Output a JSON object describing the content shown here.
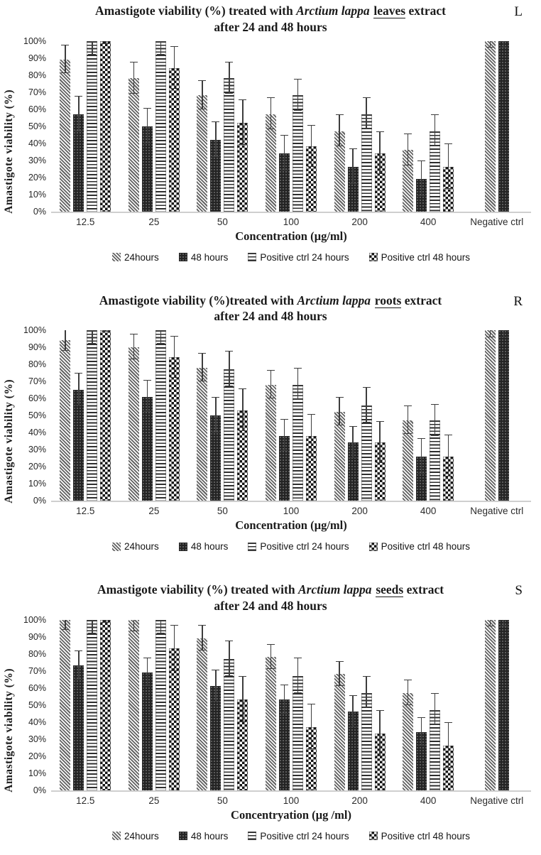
{
  "chart_data": [
    {
      "type": "bar",
      "corner_label": "L",
      "title": {
        "prefix": "Amastigote viability (%) treated with ",
        "species_italic": "Arctium lappa",
        "organ_underlined": "leaves",
        "suffix": " extract",
        "line2": "after 24 and 48 hours",
        "full_title": "Amastigote viability (%) treated with Arctium lappa leaves extract after 24 and 48 hours"
      },
      "xlabel": "Concentration (µg/ml)",
      "ylabel": "Amastigote viability  (%)",
      "ylim": [
        0,
        100
      ],
      "ytick_step": 10,
      "yticks": [
        "0%",
        "10%",
        "20%",
        "30%",
        "40%",
        "50%",
        "60%",
        "70%",
        "80%",
        "90%",
        "100%"
      ],
      "grid": "off",
      "legend_position": "bottom",
      "categories": [
        "12.5",
        "25",
        "50",
        "100",
        "200",
        "400",
        "Negative ctrl"
      ],
      "series": [
        {
          "name": "24hours",
          "pattern": "diagonal",
          "values": [
            89,
            78,
            68,
            57,
            47,
            36,
            100
          ],
          "errors": [
            8,
            9,
            8,
            9,
            9,
            9,
            4
          ]
        },
        {
          "name": "48 hours",
          "pattern": "dots-dark",
          "values": [
            57,
            50,
            42,
            34,
            26,
            19,
            100
          ],
          "errors": [
            10,
            10,
            10,
            10,
            10,
            10,
            4
          ]
        },
        {
          "name": "Positive ctrl 24 hours",
          "pattern": "hlines",
          "values": [
            100,
            100,
            78,
            68,
            57,
            47,
            null
          ],
          "errors": [
            8,
            8,
            9,
            9,
            9,
            9,
            null
          ]
        },
        {
          "name": "Positive ctrl 48 hours",
          "pattern": "checker",
          "values": [
            100,
            84,
            52,
            38,
            34,
            26,
            null
          ],
          "errors": [
            2,
            12,
            13,
            12,
            12,
            13,
            null
          ]
        }
      ]
    },
    {
      "type": "bar",
      "corner_label": "R",
      "title": {
        "prefix": "Amastigote viability (%)treated with ",
        "species_italic": "Arctium lappa",
        "organ_underlined": "roots",
        "suffix": " extract",
        "line2": "after 24 and 48 hours",
        "full_title": "Amastigote viability (%)treated with Arctium lappa roots extract after 24 and 48 hours"
      },
      "xlabel": "Concentration (µg/ml)",
      "ylabel": "Amastigote viability  (%)",
      "ylim": [
        0,
        100
      ],
      "ytick_step": 10,
      "yticks": [
        "0%",
        "10%",
        "20%",
        "30%",
        "40%",
        "50%",
        "60%",
        "70%",
        "80%",
        "90%",
        "100%"
      ],
      "grid": "off",
      "legend_position": "bottom",
      "categories": [
        "12.5",
        "25",
        "50",
        "100",
        "200",
        "400",
        "Negative ctrl"
      ],
      "series": [
        {
          "name": "24hours",
          "pattern": "diagonal",
          "values": [
            94,
            90,
            78,
            68,
            52,
            47,
            100
          ],
          "errors": [
            6,
            7,
            8,
            8,
            8,
            8,
            4
          ]
        },
        {
          "name": "48 hours",
          "pattern": "dots-dark",
          "values": [
            65,
            61,
            50,
            38,
            34,
            26,
            100
          ],
          "errors": [
            9,
            9,
            10,
            9,
            9,
            10,
            4
          ]
        },
        {
          "name": "Positive ctrl 24 hours",
          "pattern": "hlines",
          "values": [
            100,
            100,
            77,
            68,
            56,
            47,
            null
          ],
          "errors": [
            8,
            8,
            10,
            9,
            10,
            9,
            null
          ]
        },
        {
          "name": "Positive ctrl 48 hours",
          "pattern": "checker",
          "values": [
            100,
            84,
            53,
            38,
            34,
            26,
            null
          ],
          "errors": [
            1,
            12,
            12,
            12,
            12,
            12,
            null
          ]
        }
      ]
    },
    {
      "type": "bar",
      "corner_label": "S",
      "title": {
        "prefix": "Amastigote viability (%) treated with ",
        "species_italic": "Arctium lappa",
        "organ_underlined": "seeds",
        "suffix": " extract",
        "line2": "after 24 and 48 hours",
        "full_title": "Amastigote viability (%) treated with Arctium lappa seeds extract after 24 and 48 hours"
      },
      "xlabel": "Concentryation (µg /ml)",
      "ylabel": "Amastigote viability  (%)",
      "ylim": [
        0,
        100
      ],
      "ytick_step": 10,
      "yticks": [
        "0%",
        "10%",
        "20%",
        "30%",
        "40%",
        "50%",
        "60%",
        "70%",
        "80%",
        "90%",
        "100%"
      ],
      "grid": "off",
      "legend_position": "bottom",
      "categories": [
        "12.5",
        "25",
        "50",
        "100",
        "200",
        "400",
        "Negative ctrl"
      ],
      "series": [
        {
          "name": "24hours",
          "pattern": "diagonal",
          "values": [
            100,
            100,
            89,
            78,
            68,
            57,
            100
          ],
          "errors": [
            6,
            7,
            7,
            7,
            7,
            7,
            4
          ]
        },
        {
          "name": "48 hours",
          "pattern": "dots-dark",
          "values": [
            73,
            69,
            61,
            53,
            46,
            34,
            100
          ],
          "errors": [
            8,
            8,
            9,
            8,
            9,
            8,
            4
          ]
        },
        {
          "name": "Positive ctrl 24 hours",
          "pattern": "hlines",
          "values": [
            100,
            100,
            77,
            67,
            57,
            47,
            null
          ],
          "errors": [
            8,
            8,
            10,
            10,
            9,
            9,
            null
          ]
        },
        {
          "name": "Positive ctrl 48 hours",
          "pattern": "checker",
          "values": [
            100,
            83,
            53,
            37,
            33,
            26,
            null
          ],
          "errors": [
            2,
            13,
            13,
            13,
            13,
            13,
            null
          ]
        }
      ]
    }
  ]
}
